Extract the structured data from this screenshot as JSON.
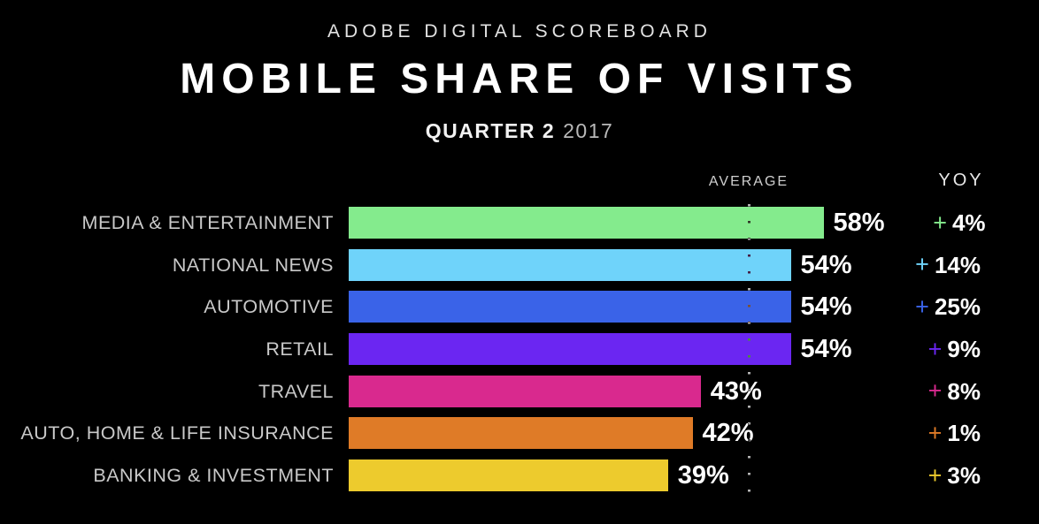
{
  "header": {
    "eyebrow": "ADOBE DIGITAL SCOREBOARD",
    "title": "MOBILE SHARE OF VISITS",
    "subtitle_bold": "QUARTER 2",
    "subtitle_year": "2017"
  },
  "columns": {
    "average_label": "AVERAGE",
    "yoy_label": "YOY"
  },
  "chart_data": {
    "type": "bar",
    "orientation": "horizontal",
    "title": "Mobile Share of Visits",
    "subtitle": "Quarter 2 2017",
    "categories": [
      "MEDIA & ENTERTAINMENT",
      "NATIONAL NEWS",
      "AUTOMOTIVE",
      "RETAIL",
      "TRAVEL",
      "AUTO, HOME & LIFE INSURANCE",
      "BANKING & INVESTMENT"
    ],
    "values": [
      58,
      54,
      54,
      54,
      43,
      42,
      39
    ],
    "value_labels": [
      "58%",
      "54%",
      "54%",
      "54%",
      "43%",
      "42%",
      "39%"
    ],
    "yoy_change_values": [
      4,
      14,
      25,
      9,
      8,
      1,
      3
    ],
    "yoy_change_labels": [
      "+4%",
      "+14%",
      "+25%",
      "+9%",
      "+8%",
      "+1%",
      "+3%"
    ],
    "bar_colors": [
      "#84EB8D",
      "#6FD3FA",
      "#3A63E8",
      "#6B26F2",
      "#D9298E",
      "#DF7B27",
      "#EDCB2D"
    ],
    "plus_sign": "+",
    "average_line_value": 49,
    "xlim": [
      0,
      65
    ],
    "value_format": "percent",
    "legend": "none",
    "grid": "off"
  }
}
